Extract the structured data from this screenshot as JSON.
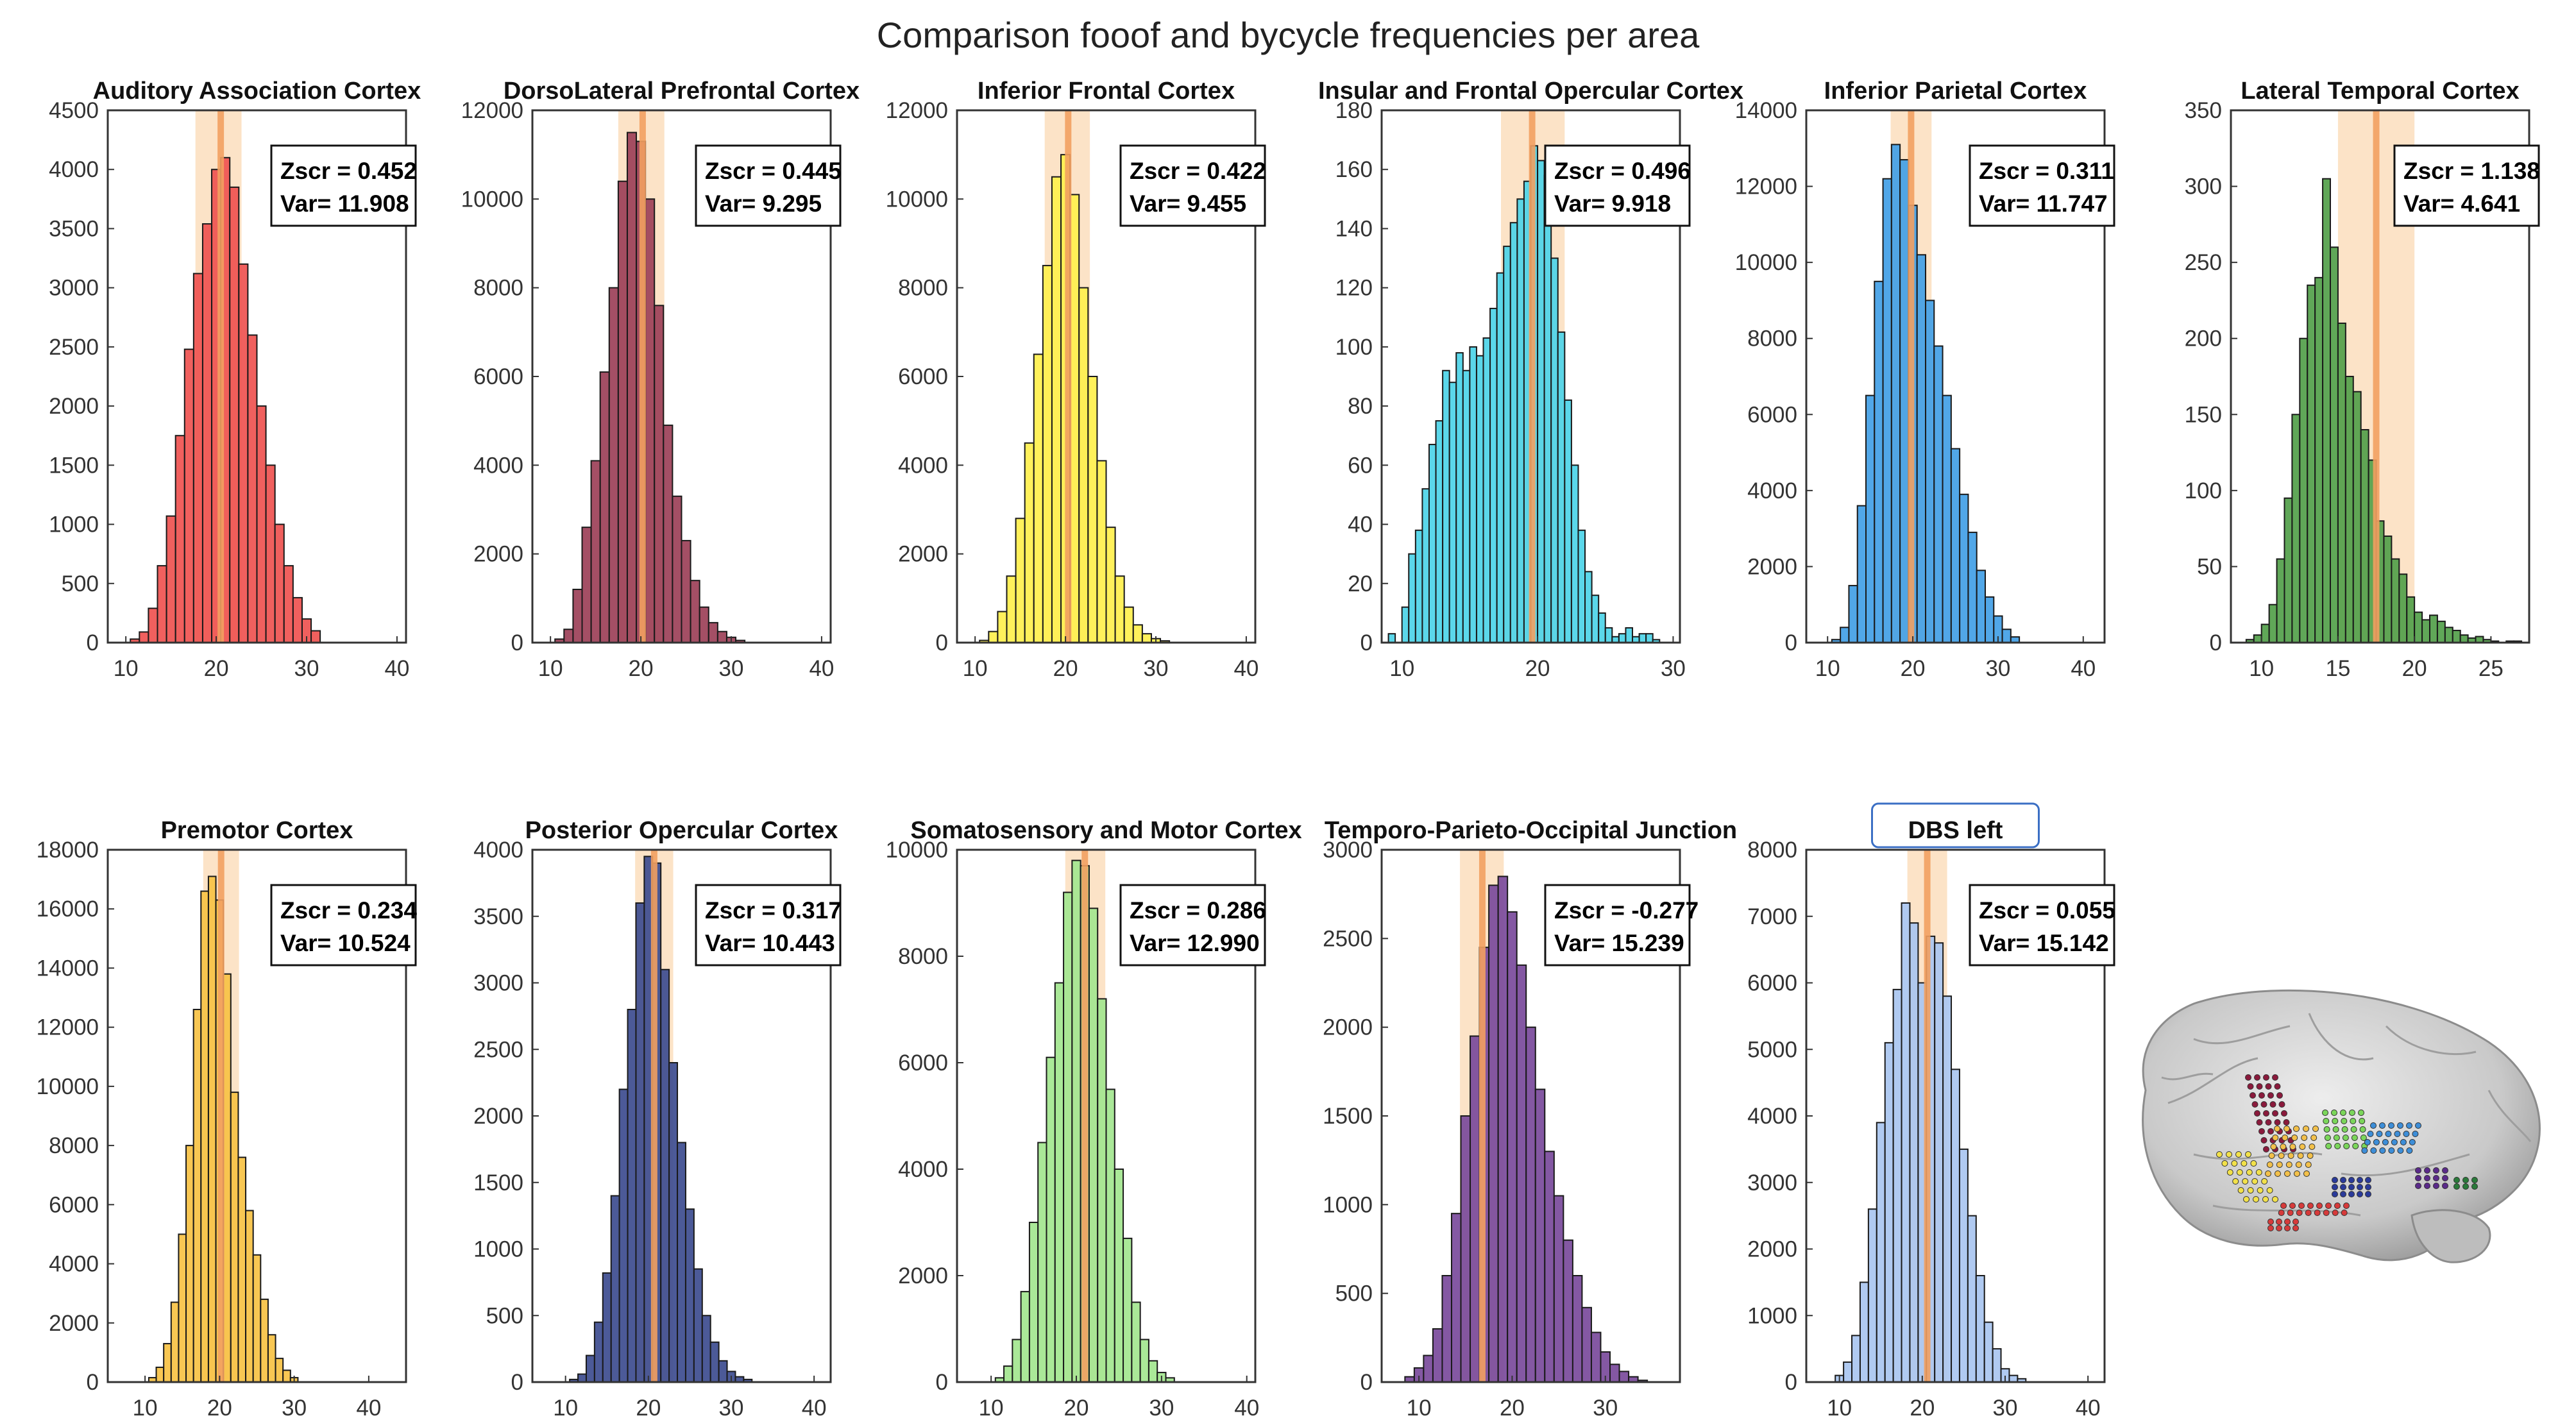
{
  "title": "Comparison fooof and bycycle frequencies per area",
  "chart_data": [
    {
      "type": "bar",
      "title": "Auditory Association Cortex",
      "color": "#ef5350",
      "bin_width": 1,
      "x": [
        11,
        12,
        13,
        14,
        15,
        16,
        17,
        18,
        19,
        20,
        21,
        22,
        23,
        24,
        25,
        26,
        27,
        28,
        29,
        30,
        31
      ],
      "values": [
        30,
        90,
        290,
        650,
        1070,
        1750,
        2480,
        3120,
        3540,
        4000,
        4100,
        3850,
        3200,
        2600,
        2000,
        1500,
        1000,
        650,
        380,
        200,
        100
      ],
      "xlim": [
        8,
        41
      ],
      "ylim": [
        0,
        4500
      ],
      "xticks": [
        10,
        20,
        30,
        40
      ],
      "yticks": [
        0,
        500,
        1000,
        1500,
        2000,
        2500,
        3000,
        3500,
        4000,
        4500
      ],
      "band": [
        17.7,
        22.8
      ],
      "line": 20.5,
      "zscr": "Zscr = 0.452",
      "var": "Var= 11.908"
    },
    {
      "type": "bar",
      "title": "DorsoLateral Prefrontal Cortex",
      "color": "#9c4058",
      "bin_width": 1,
      "x": [
        11,
        12,
        13,
        14,
        15,
        16,
        17,
        18,
        19,
        20,
        21,
        22,
        23,
        24,
        25,
        26,
        27,
        28,
        29,
        30,
        31
      ],
      "values": [
        80,
        300,
        1200,
        2600,
        4100,
        6100,
        8000,
        10400,
        11500,
        11300,
        10000,
        7600,
        4900,
        3300,
        2300,
        1400,
        800,
        450,
        250,
        120,
        50
      ],
      "xlim": [
        8,
        41
      ],
      "ylim": [
        0,
        12000
      ],
      "xticks": [
        10,
        20,
        30,
        40
      ],
      "yticks": [
        0,
        2000,
        4000,
        6000,
        8000,
        10000,
        12000
      ],
      "band": [
        17.5,
        22.6
      ],
      "line": 20.2,
      "zscr": "Zscr = 0.445",
      "var": "Var= 9.295"
    },
    {
      "type": "bar",
      "title": "Inferior Frontal Cortex",
      "color": "#fff04d",
      "bin_width": 1,
      "x": [
        11,
        12,
        13,
        14,
        15,
        16,
        17,
        18,
        19,
        20,
        21,
        22,
        23,
        24,
        25,
        26,
        27,
        28,
        29,
        30,
        31
      ],
      "values": [
        50,
        250,
        700,
        1500,
        2800,
        4500,
        6500,
        8500,
        10500,
        11000,
        10100,
        8000,
        6000,
        4100,
        2600,
        1500,
        800,
        400,
        200,
        90,
        40
      ],
      "xlim": [
        8,
        41
      ],
      "ylim": [
        0,
        12000
      ],
      "xticks": [
        10,
        20,
        30,
        40
      ],
      "yticks": [
        0,
        2000,
        4000,
        6000,
        8000,
        10000,
        12000
      ],
      "band": [
        17.7,
        22.7
      ],
      "line": 20.3,
      "zscr": "Zscr = 0.422",
      "var": "Var= 9.455"
    },
    {
      "type": "bar",
      "title": "Insular and Frontal Opercular Cortex",
      "color": "#4dd4e8",
      "bin_width": 0.5,
      "x": [
        9.25,
        9.75,
        10.25,
        10.75,
        11.25,
        11.75,
        12.25,
        12.75,
        13.25,
        13.75,
        14.25,
        14.75,
        15.25,
        15.75,
        16.25,
        16.75,
        17.25,
        17.75,
        18.25,
        18.75,
        19.25,
        19.75,
        20.25,
        20.75,
        21.25,
        21.75,
        22.25,
        22.75,
        23.25,
        23.75,
        24.25,
        24.75,
        25.25,
        25.75,
        26.25,
        26.75,
        27.25,
        27.75,
        28.25,
        28.75
      ],
      "values": [
        3,
        0,
        12,
        30,
        38,
        52,
        67,
        75,
        92,
        88,
        98,
        92,
        100,
        97,
        103,
        113,
        125,
        134,
        142,
        150,
        156,
        168,
        163,
        158,
        130,
        105,
        82,
        60,
        38,
        24,
        16,
        10,
        5,
        2,
        3,
        5,
        2,
        3,
        3,
        1
      ],
      "xlim": [
        8.5,
        30.5
      ],
      "ylim": [
        0,
        180
      ],
      "xticks": [
        10,
        20,
        30
      ],
      "yticks": [
        0,
        20,
        40,
        60,
        80,
        100,
        120,
        140,
        160,
        180
      ],
      "band": [
        17.3,
        22.0
      ],
      "line": 19.6,
      "zscr": "Zscr = 0.496",
      "var": "Var= 9.918"
    },
    {
      "type": "bar",
      "title": "Inferior Parietal Cortex",
      "color": "#42a0e6",
      "bin_width": 1,
      "x": [
        11,
        12,
        13,
        14,
        15,
        16,
        17,
        18,
        19,
        20,
        21,
        22,
        23,
        24,
        25,
        26,
        27,
        28,
        29,
        30,
        31,
        32
      ],
      "values": [
        80,
        400,
        1500,
        3600,
        6500,
        9500,
        12200,
        13100,
        12700,
        11500,
        10200,
        9000,
        7800,
        6500,
        5100,
        3900,
        2900,
        1900,
        1200,
        700,
        350,
        150
      ],
      "xlim": [
        7.5,
        42.5
      ],
      "ylim": [
        0,
        14000
      ],
      "xticks": [
        10,
        20,
        30,
        40
      ],
      "yticks": [
        0,
        2000,
        4000,
        6000,
        8000,
        10000,
        12000,
        14000
      ],
      "band": [
        17.4,
        22.2
      ],
      "line": 19.8,
      "zscr": "Zscr = 0.311",
      "var": "Var= 11.747"
    },
    {
      "type": "bar",
      "title": "Lateral Temporal Cortex",
      "color": "#52a04a",
      "bin_width": 0.5,
      "x": [
        9.25,
        9.75,
        10.25,
        10.75,
        11.25,
        11.75,
        12.25,
        12.75,
        13.25,
        13.75,
        14.25,
        14.75,
        15.25,
        15.75,
        16.25,
        16.75,
        17.25,
        17.75,
        18.25,
        18.75,
        19.25,
        19.75,
        20.25,
        20.75,
        21.25,
        21.75,
        22.25,
        22.75,
        23.25,
        23.75,
        24.25,
        24.75,
        25.25,
        25.75,
        26.25,
        26.75
      ],
      "values": [
        2,
        5,
        12,
        25,
        55,
        95,
        150,
        200,
        235,
        240,
        305,
        260,
        210,
        175,
        165,
        140,
        120,
        80,
        70,
        55,
        45,
        30,
        20,
        15,
        18,
        14,
        10,
        8,
        5,
        3,
        4,
        2,
        1,
        0,
        1,
        1
      ],
      "xlim": [
        8,
        27.5
      ],
      "ylim": [
        0,
        350
      ],
      "xticks": [
        10,
        15,
        20,
        25
      ],
      "yticks": [
        0,
        50,
        100,
        150,
        200,
        250,
        300,
        350
      ],
      "band": [
        15.0,
        20.0
      ],
      "line": 17.5,
      "zscr": "Zscr = 1.138",
      "var": "Var= 4.641"
    },
    {
      "type": "bar",
      "title": "Premotor Cortex",
      "color": "#f7c244",
      "bin_width": 1,
      "x": [
        11,
        12,
        13,
        14,
        15,
        16,
        17,
        18,
        19,
        20,
        21,
        22,
        23,
        24,
        25,
        26,
        27,
        28,
        29,
        30
      ],
      "values": [
        150,
        500,
        1300,
        2700,
        5000,
        8000,
        12600,
        16600,
        17100,
        16300,
        13800,
        9800,
        7600,
        5800,
        4300,
        2800,
        1600,
        800,
        400,
        150
      ],
      "xlim": [
        5,
        45
      ],
      "ylim": [
        0,
        18000
      ],
      "xticks": [
        10,
        20,
        30,
        40
      ],
      "yticks": [
        0,
        2000,
        4000,
        6000,
        8000,
        10000,
        12000,
        14000,
        16000,
        18000
      ],
      "band": [
        17.8,
        22.6
      ],
      "line": 20.2,
      "zscr": "Zscr = 0.234",
      "var": "Var= 10.524"
    },
    {
      "type": "bar",
      "title": "Posterior Opercular Cortex",
      "color": "#3d4c8f",
      "bin_width": 1,
      "x": [
        11,
        12,
        13,
        14,
        15,
        16,
        17,
        18,
        19,
        20,
        21,
        22,
        23,
        24,
        25,
        26,
        27,
        28,
        29,
        30,
        31,
        32
      ],
      "values": [
        20,
        60,
        200,
        450,
        820,
        1400,
        2200,
        2800,
        3600,
        3950,
        3900,
        3100,
        2400,
        1800,
        1300,
        850,
        500,
        300,
        160,
        80,
        40,
        20
      ],
      "xlim": [
        6,
        42
      ],
      "ylim": [
        0,
        4000
      ],
      "xticks": [
        10,
        20,
        30,
        40
      ],
      "yticks": [
        0,
        500,
        1000,
        1500,
        2000,
        2500,
        3000,
        3500,
        4000
      ],
      "band": [
        18.4,
        23.0
      ],
      "line": 20.7,
      "zscr": "Zscr = 0.317",
      "var": "Var= 10.443"
    },
    {
      "type": "bar",
      "title": "Somatosensory and Motor Cortex",
      "color": "#a3e68f",
      "bin_width": 1,
      "x": [
        11,
        12,
        13,
        14,
        15,
        16,
        17,
        18,
        19,
        20,
        21,
        22,
        23,
        24,
        25,
        26,
        27,
        28,
        29,
        30,
        31
      ],
      "values": [
        80,
        300,
        800,
        1700,
        3000,
        4500,
        6100,
        7500,
        9200,
        9800,
        9700,
        8900,
        7200,
        5500,
        4000,
        2700,
        1500,
        800,
        400,
        180,
        80
      ],
      "xlim": [
        6,
        41
      ],
      "ylim": [
        0,
        10000
      ],
      "xticks": [
        10,
        20,
        30,
        40
      ],
      "yticks": [
        0,
        2000,
        4000,
        6000,
        8000,
        10000
      ],
      "band": [
        18.7,
        23.4
      ],
      "line": 21.0,
      "zscr": "Zscr = 0.286",
      "var": "Var= 12.990"
    },
    {
      "type": "bar",
      "title": "Temporo-Parieto-Occipital Junction",
      "color": "#7a4a9b",
      "bin_width": 1,
      "x": [
        9,
        10,
        11,
        12,
        13,
        14,
        15,
        16,
        17,
        18,
        19,
        20,
        21,
        22,
        23,
        24,
        25,
        26,
        27,
        28,
        29,
        30,
        31,
        32,
        33,
        34
      ],
      "values": [
        30,
        80,
        150,
        300,
        600,
        950,
        1500,
        1950,
        2450,
        2800,
        2850,
        2650,
        2350,
        2000,
        1650,
        1300,
        1050,
        800,
        600,
        420,
        280,
        170,
        100,
        60,
        30,
        10
      ],
      "xlim": [
        6,
        38
      ],
      "ylim": [
        0,
        3000
      ],
      "xticks": [
        10,
        20,
        30
      ],
      "yticks": [
        0,
        500,
        1000,
        1500,
        2000,
        2500,
        3000
      ],
      "band": [
        14.4,
        19.1
      ],
      "line": 16.8,
      "zscr": "Zscr = -0.277",
      "var": "Var= 15.239"
    },
    {
      "type": "bar",
      "title": "DBS left",
      "title_boxed": true,
      "color": "#a9c5f0",
      "bin_width": 1,
      "x": [
        10,
        11,
        12,
        13,
        14,
        15,
        16,
        17,
        18,
        19,
        20,
        21,
        22,
        23,
        24,
        25,
        26,
        27,
        28,
        29,
        30,
        31,
        32
      ],
      "values": [
        100,
        300,
        700,
        1500,
        2600,
        3900,
        5100,
        5900,
        7200,
        6900,
        6000,
        6700,
        6600,
        5800,
        4700,
        3500,
        2500,
        1600,
        900,
        500,
        200,
        100,
        50
      ],
      "xlim": [
        6,
        42
      ],
      "ylim": [
        0,
        8000
      ],
      "xticks": [
        10,
        20,
        30,
        40
      ],
      "yticks": [
        0,
        1000,
        2000,
        3000,
        4000,
        5000,
        6000,
        7000,
        8000
      ],
      "band": [
        18.2,
        23.0
      ],
      "line": 20.6,
      "zscr": "Zscr = 0.055",
      "var": "Var= 15.142"
    }
  ],
  "brain": {
    "icon": "brain-render-icon",
    "electrode_colors": [
      "#8b1a3c",
      "#f2e14a",
      "#f2c04a",
      "#7bd65a",
      "#3d8ed8",
      "#5a2a8a",
      "#2a7a3a",
      "#d63a3a",
      "#2a3a9a",
      "#9ae08a"
    ]
  }
}
